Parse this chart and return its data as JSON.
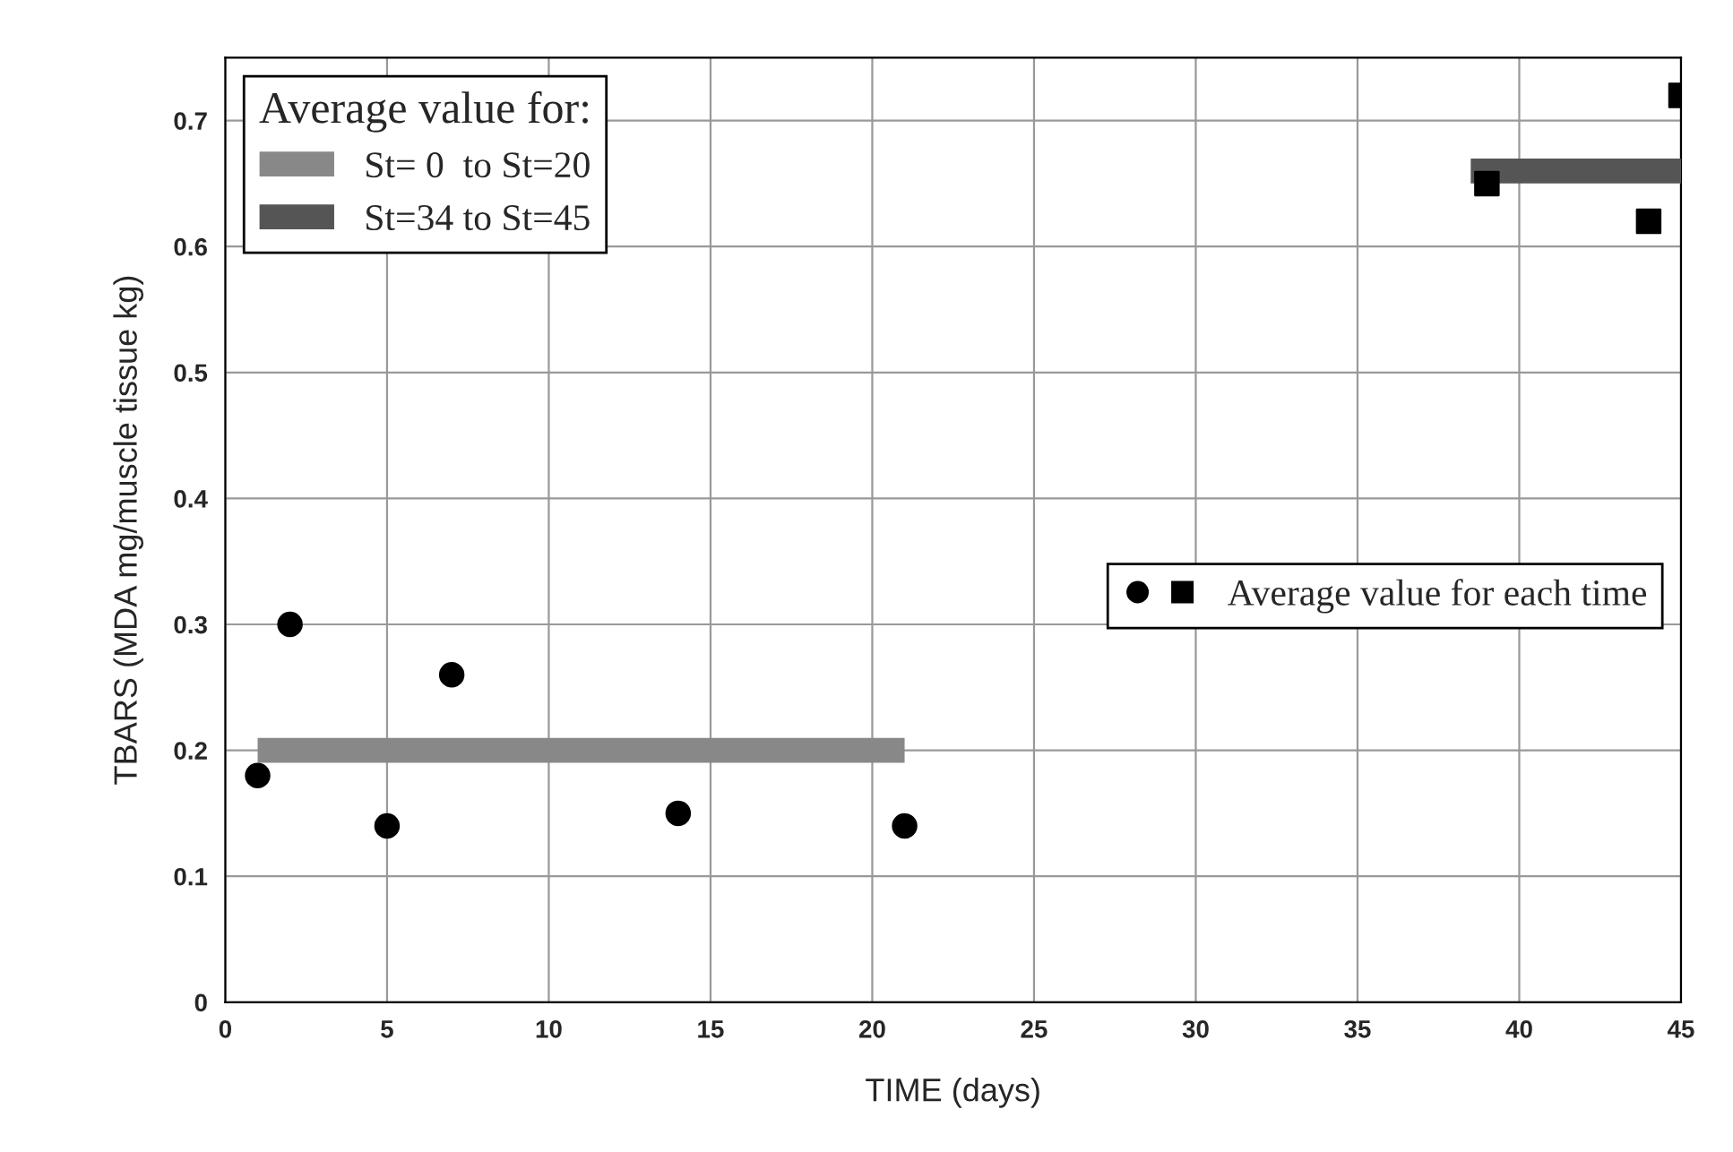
{
  "chart_data": {
    "type": "scatter",
    "xlabel": "TIME (days)",
    "ylabel": "TBARS (MDA mg/muscle tissue kg)",
    "legend_title": "Average value for:",
    "xlim": [
      0,
      45
    ],
    "xticks": [
      0,
      5,
      10,
      15,
      20,
      25,
      30,
      35,
      40,
      45
    ],
    "ylim": [
      0,
      0.75
    ],
    "yticks": [
      0,
      0.1,
      0.2,
      0.3,
      0.4,
      0.5,
      0.6,
      0.7
    ],
    "grid": true,
    "legend": "top left",
    "series": [
      {
        "name": "St= 0  to St=20",
        "type": "line",
        "color": "#888888",
        "x": [
          1,
          21
        ],
        "values": [
          0.2,
          0.2
        ]
      },
      {
        "name": "St=34 to St=45",
        "type": "line",
        "color": "#555555",
        "x": [
          38.5,
          45
        ],
        "values": [
          0.66,
          0.66
        ]
      },
      {
        "name": "Average value for each time",
        "marker": "circle",
        "color": "#000000",
        "x": [
          1,
          2,
          5,
          7,
          14,
          21
        ],
        "values": [
          0.18,
          0.3,
          0.14,
          0.26,
          0.15,
          0.14
        ]
      },
      {
        "marker": "square",
        "color": "#000000",
        "x": [
          39,
          44,
          45
        ],
        "values": [
          0.65,
          0.62,
          0.72
        ]
      }
    ]
  }
}
